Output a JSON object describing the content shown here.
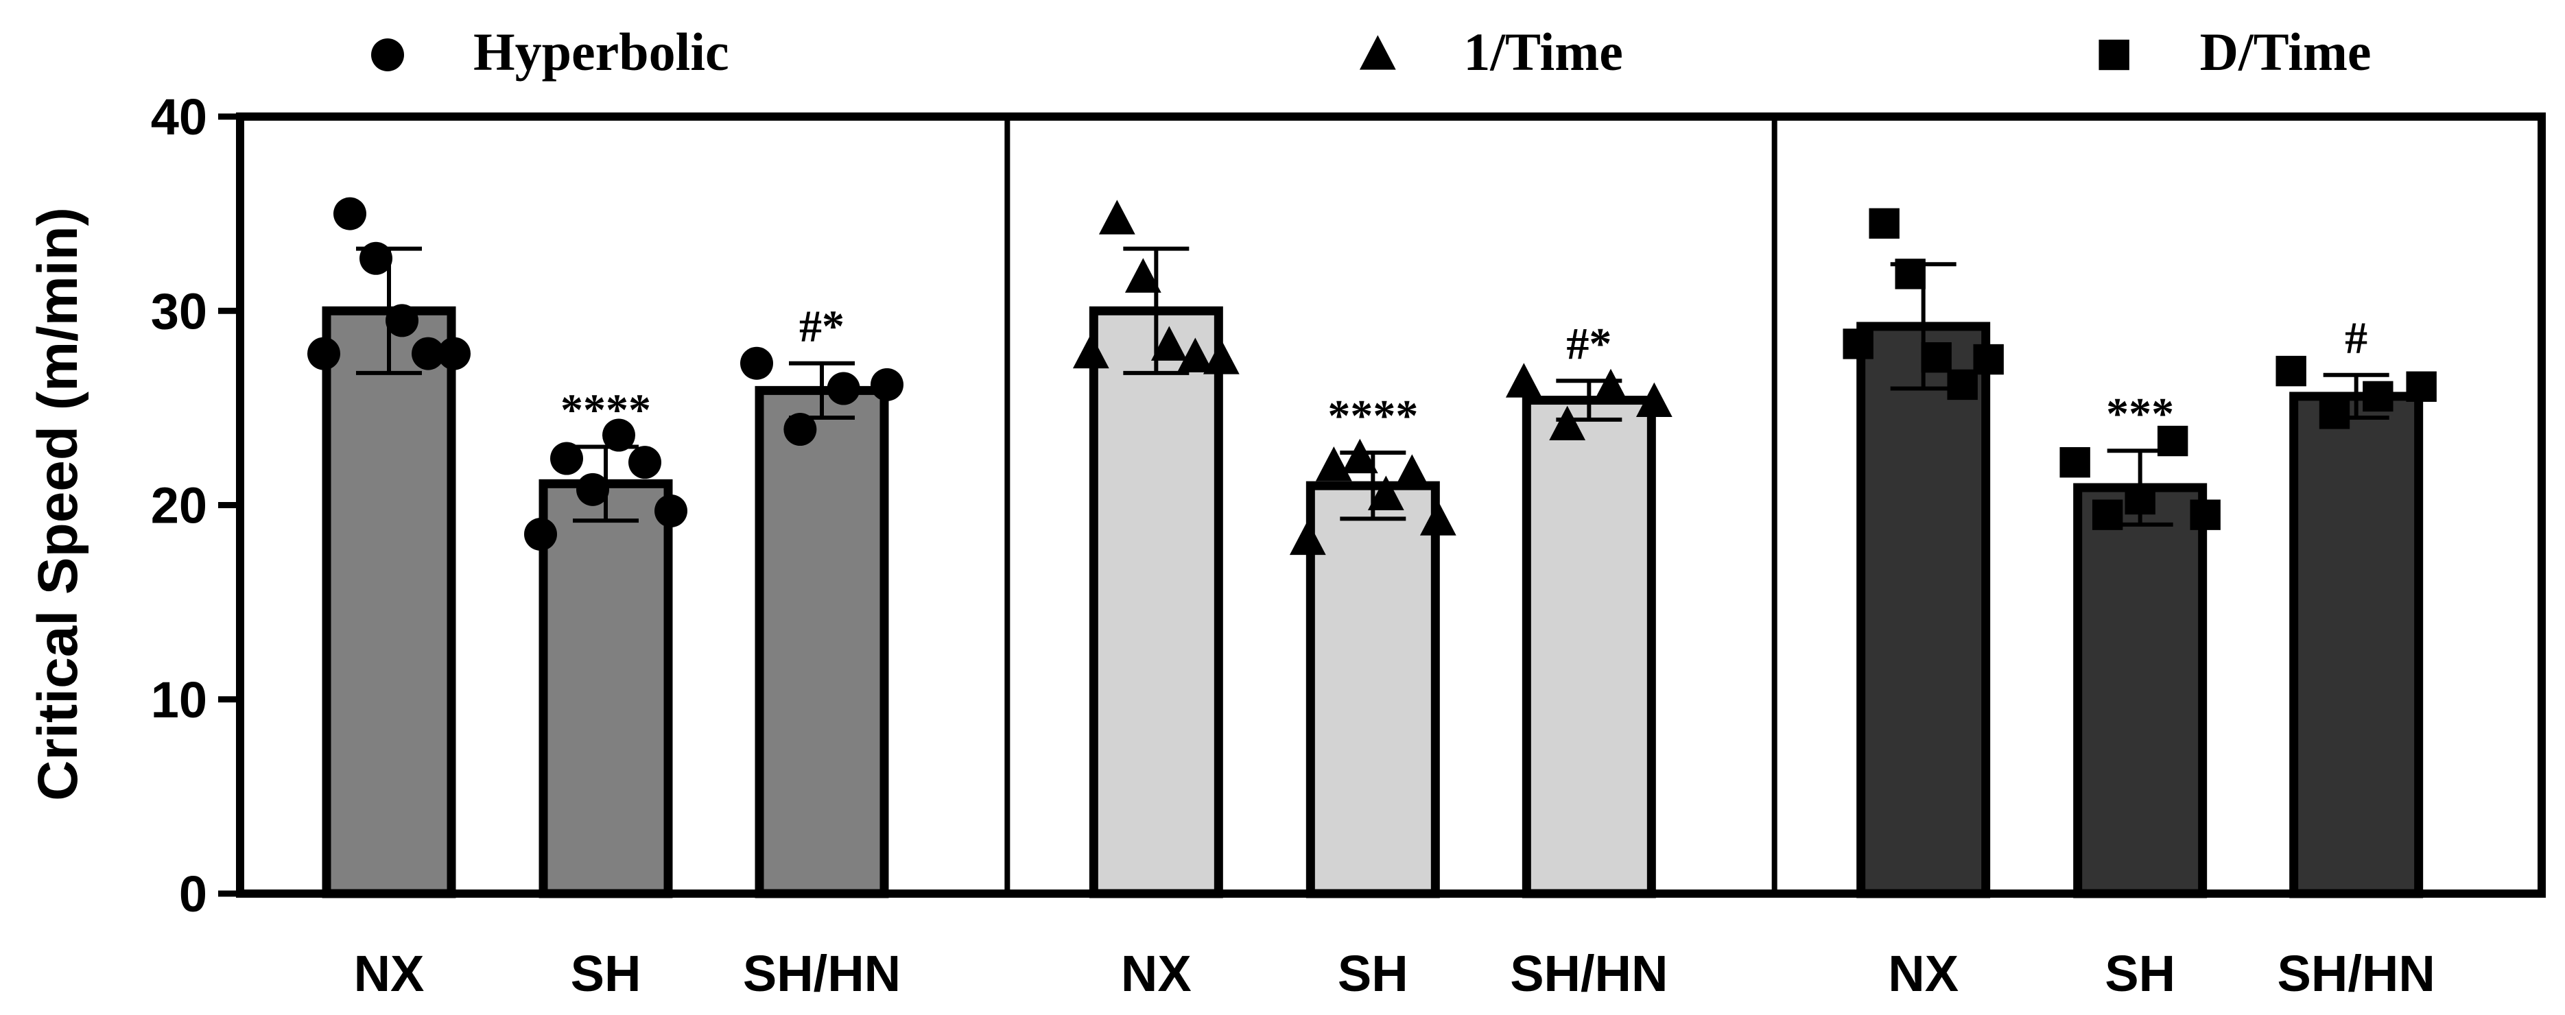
{
  "chart_data": {
    "type": "bar",
    "ylabel": "Critical Speed (m/min)",
    "ylim": [
      0,
      40
    ],
    "yticks": [
      "0",
      "10",
      "20",
      "30",
      "40"
    ],
    "yticks_values": [
      0,
      10,
      20,
      30,
      40
    ],
    "categories": [
      "NX",
      "SH",
      "SH/HN"
    ],
    "legend_position": "top",
    "panels": [
      {
        "name": "Hyperbolic",
        "marker": "circle",
        "fill": "#808080",
        "bars": [
          {
            "category": "NX",
            "value": 30.0,
            "sd": 3.2,
            "points": [
              27.8,
              35.0,
              32.7,
              29.5,
              27.8,
              27.8
            ],
            "annotation": ""
          },
          {
            "category": "SH",
            "value": 21.1,
            "sd": 1.9,
            "points": [
              18.5,
              22.4,
              20.8,
              23.6,
              22.2,
              19.7
            ],
            "annotation": "****"
          },
          {
            "category": "SH/HN",
            "value": 25.9,
            "sd": 1.4,
            "points": [
              27.3,
              23.9,
              26.0,
              26.2
            ],
            "annotation": "#*"
          }
        ]
      },
      {
        "name": "1/Time",
        "marker": "triangle",
        "fill": "#d3d3d3",
        "bars": [
          {
            "category": "NX",
            "value": 30.0,
            "sd": 3.2,
            "points": [
              27.8,
              34.7,
              31.7,
              28.2,
              27.6,
              27.5
            ],
            "annotation": ""
          },
          {
            "category": "SH",
            "value": 21.0,
            "sd": 1.7,
            "points": [
              18.2,
              22.0,
              22.4,
              20.5,
              21.6,
              19.2
            ],
            "annotation": "****"
          },
          {
            "category": "SH/HN",
            "value": 25.4,
            "sd": 1.0,
            "points": [
              26.3,
              24.1,
              26.0,
              25.3
            ],
            "annotation": "#*"
          }
        ]
      },
      {
        "name": "D/Time",
        "marker": "square",
        "fill": "#333333",
        "bars": [
          {
            "category": "NX",
            "value": 29.2,
            "sd": 3.2,
            "points": [
              28.3,
              34.5,
              31.9,
              27.6,
              26.2,
              27.5
            ],
            "annotation": ""
          },
          {
            "category": "SH",
            "value": 20.9,
            "sd": 1.9,
            "points": [
              22.2,
              19.5,
              20.3,
              23.3,
              19.5
            ],
            "annotation": "***"
          },
          {
            "category": "SH/HN",
            "value": 25.6,
            "sd": 1.1,
            "points": [
              26.9,
              24.7,
              25.6,
              26.1
            ],
            "annotation": "#"
          }
        ]
      }
    ]
  }
}
